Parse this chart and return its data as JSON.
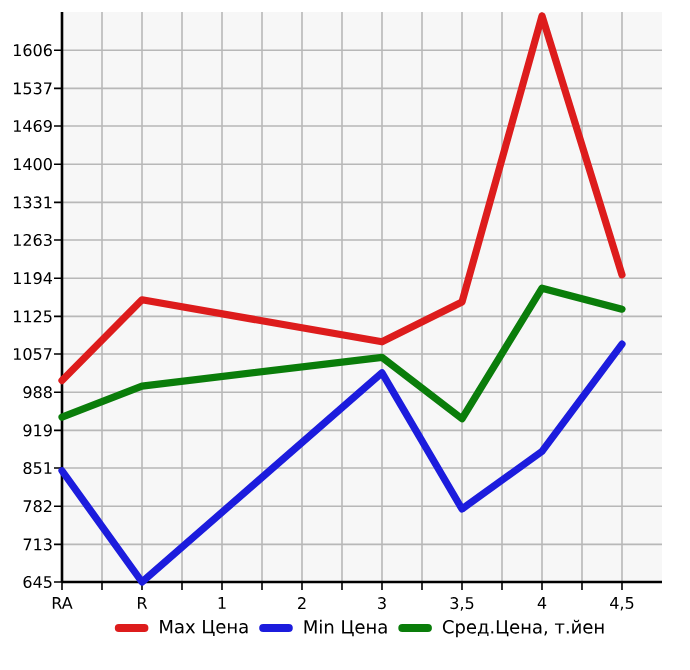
{
  "chart_data": {
    "type": "line",
    "categories": [
      "RA",
      "R",
      "1",
      "2",
      "3",
      "3,5",
      "4",
      "4,5"
    ],
    "series": [
      {
        "name": "Max Цена",
        "color": "#dd1c1c",
        "values": [
          1009,
          1155,
          null,
          null,
          1079,
          1151,
          1668,
          1200
        ]
      },
      {
        "name": "Min Цена",
        "color": "#1c1cdd",
        "values": [
          846,
          645,
          null,
          null,
          1023,
          777,
          881,
          1075
        ]
      },
      {
        "name": "Сред.Цена, т.йен",
        "color": "#0a7d0a",
        "values": [
          943,
          999,
          null,
          null,
          1051,
          940,
          1176,
          1138
        ]
      }
    ],
    "ylim": [
      645,
      1675
    ],
    "yticks": [
      645,
      713,
      782,
      851,
      919,
      988,
      1057,
      1125,
      1194,
      1263,
      1331,
      1400,
      1469,
      1537,
      1606
    ],
    "grid": true,
    "legend": "bottom",
    "marker": "none",
    "line_style": "solid"
  }
}
